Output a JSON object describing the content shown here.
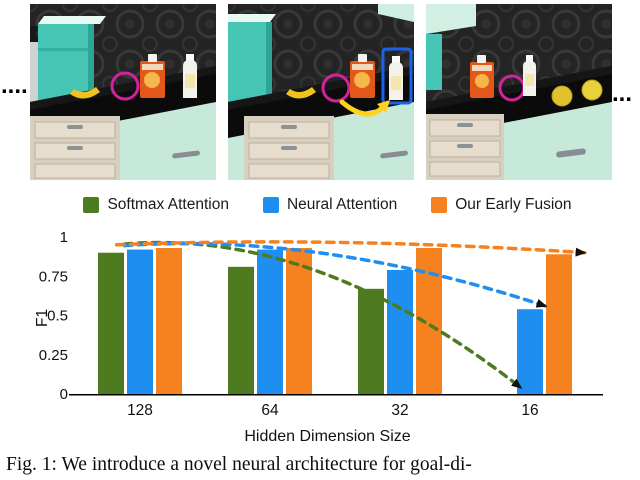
{
  "figure": {
    "caption": "Fig. 1: We introduce a novel neural architecture for goal-di-",
    "left_ellipsis": "....",
    "right_ellipsis": "..."
  },
  "annotations": {
    "highlight_color": "#d4219e",
    "target_box_color": "#1a63e8",
    "arrow_color": "#ffd21f"
  },
  "scenes": [
    {
      "name": "scene-1",
      "highlights": [
        "magenta-circle"
      ]
    },
    {
      "name": "scene-2",
      "highlights": [
        "magenta-circle",
        "blue-target-box",
        "yellow-arrow"
      ]
    },
    {
      "name": "scene-3",
      "highlights": [
        "magenta-circle"
      ]
    }
  ],
  "chart_data": {
    "type": "bar",
    "title": "",
    "categories": [
      "128",
      "64",
      "32",
      "16"
    ],
    "series": [
      {
        "name": "Softmax Attention",
        "color": "#4f7b20",
        "values": [
          0.9,
          0.81,
          0.67,
          0
        ]
      },
      {
        "name": "Neural Attention",
        "color": "#1f8ef1",
        "values": [
          0.92,
          0.92,
          0.79,
          0.54
        ]
      },
      {
        "name": "Our Early Fusion",
        "color": "#f5821f",
        "values": [
          0.93,
          0.93,
          0.93,
          0.89
        ]
      }
    ],
    "xlabel": "Hidden Dimension Size",
    "ylabel": "F1",
    "ylim": [
      0,
      1
    ],
    "yticks": [
      0,
      0.25,
      0.5,
      0.75,
      1
    ],
    "grid": false,
    "legend_position": "top",
    "trend_lines": [
      {
        "series": "Softmax Attention",
        "color": "#4f7b20",
        "start": [
          -0.12,
          0.955
        ],
        "control": [
          1.35,
          1.06
        ],
        "end": [
          2.93,
          0.04
        ]
      },
      {
        "series": "Neural Attention",
        "color": "#1f8ef1",
        "start": [
          -0.12,
          0.945
        ],
        "control": [
          1.4,
          1.03
        ],
        "end": [
          3.12,
          0.56
        ]
      },
      {
        "series": "Our Early Fusion",
        "color": "#f5821f",
        "start": [
          -0.18,
          0.95
        ],
        "control": [
          1.5,
          1.005
        ],
        "end": [
          3.42,
          0.9
        ]
      }
    ]
  }
}
